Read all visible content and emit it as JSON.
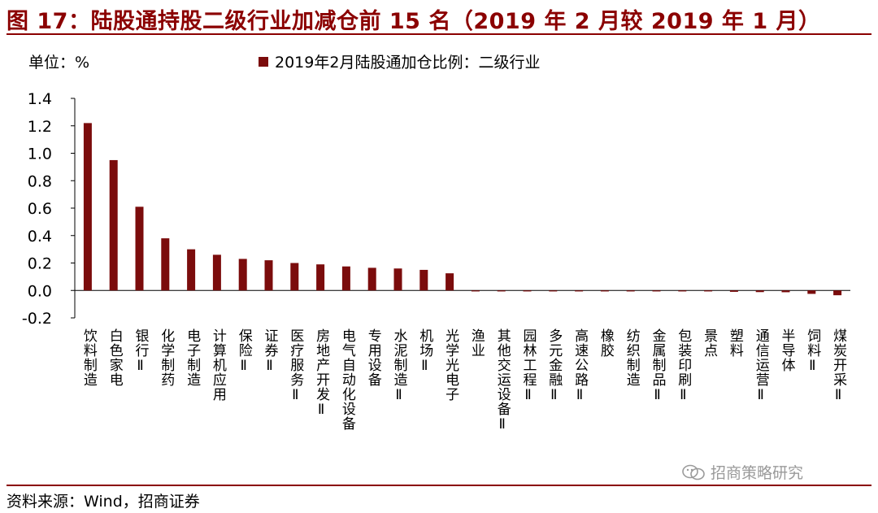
{
  "header": {
    "title": "图 17：陆股通持股二级行业加减仓前 15 名（2019 年 2 月较 2019 年 1 月）"
  },
  "unit_label": "单位：%",
  "legend_label": "2019年2月陆股通加仓比例：二级行业",
  "source": "资料来源：Wind，招商证券",
  "watermark": {
    "text": "招商策略研究",
    "icon": "wechat-icon"
  },
  "colors": {
    "bar": "#7b0c0c",
    "title": "#8b0000",
    "rule": "#8b0000"
  },
  "chart_data": {
    "type": "bar",
    "title": "",
    "xlabel": "",
    "ylabel": "",
    "ylim": [
      -0.2,
      1.4
    ],
    "yticks": [
      "-0.2",
      "0.0",
      "0.2",
      "0.4",
      "0.6",
      "0.8",
      "1.0",
      "1.2",
      "1.4"
    ],
    "grid": false,
    "legend": "top",
    "categories": [
      "饮料制造",
      "白色家电",
      "银行Ⅱ",
      "化学制药",
      "电子制造",
      "计算机应用",
      "保险Ⅱ",
      "证券Ⅱ",
      "医疗服务Ⅱ",
      "房地产开发Ⅱ",
      "电气自动化设备",
      "专用设备",
      "水泥制造Ⅱ",
      "机场Ⅱ",
      "光学光电子",
      "渔业",
      "其他交运设备Ⅱ",
      "园林工程Ⅱ",
      "多元金融Ⅱ",
      "高速公路Ⅱ",
      "橡胶",
      "纺织制造",
      "金属制品Ⅱ",
      "包装印刷Ⅱ",
      "景点",
      "塑料",
      "通信运营Ⅱ",
      "半导体",
      "饲料Ⅱ",
      "煤炭开采Ⅱ"
    ],
    "series": [
      {
        "name": "2019年2月陆股通加仓比例：二级行业",
        "values": [
          1.22,
          0.95,
          0.61,
          0.38,
          0.3,
          0.26,
          0.23,
          0.22,
          0.2,
          0.19,
          0.175,
          0.165,
          0.16,
          0.15,
          0.125,
          -0.001,
          -0.001,
          -0.001,
          -0.001,
          -0.002,
          -0.002,
          -0.003,
          -0.003,
          -0.004,
          -0.005,
          -0.01,
          -0.012,
          -0.013,
          -0.025,
          -0.035
        ]
      }
    ]
  }
}
